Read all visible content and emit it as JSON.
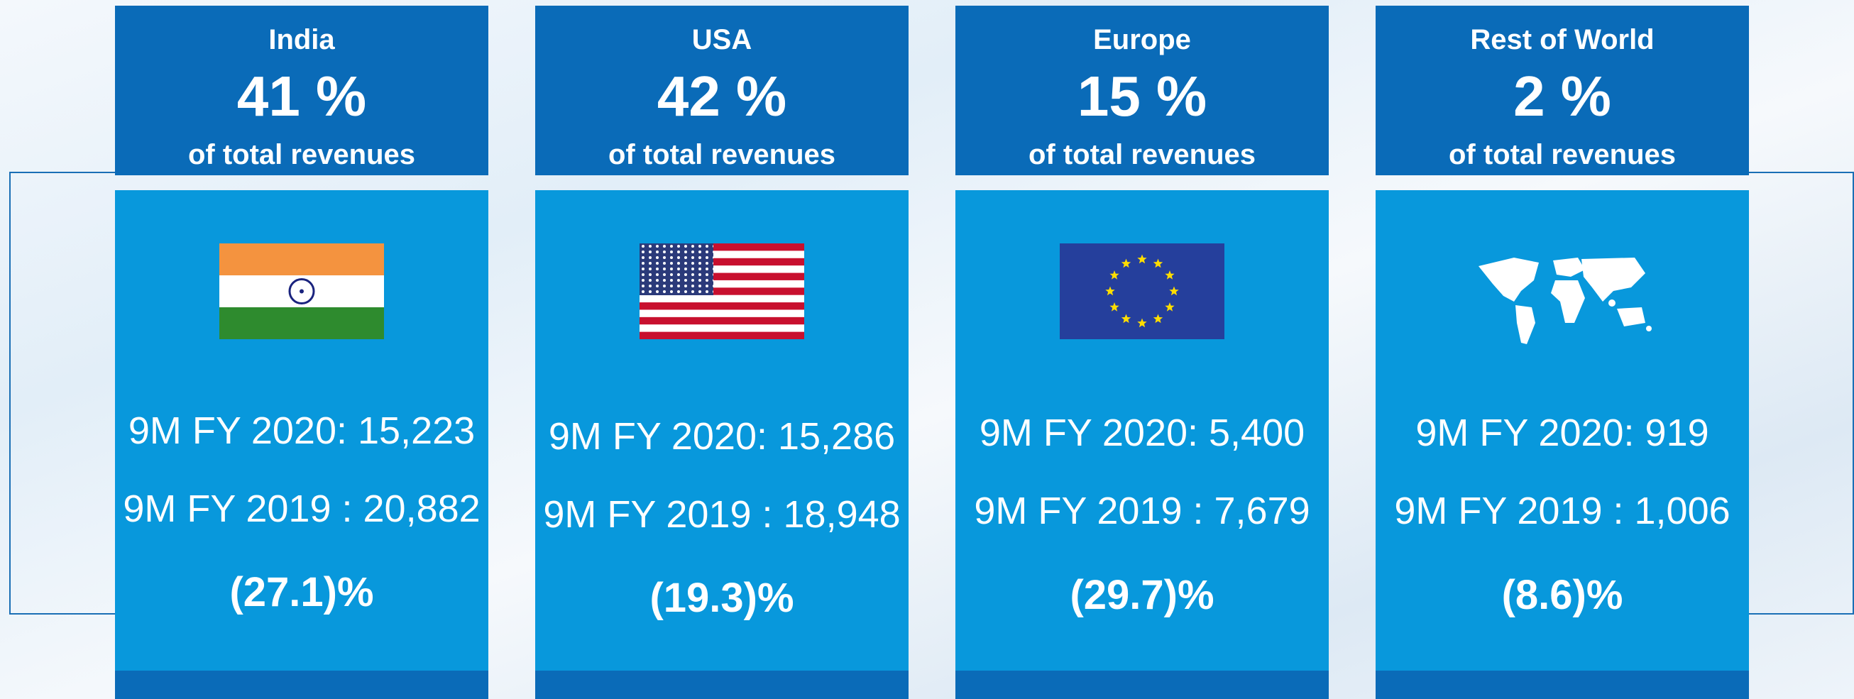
{
  "cards": [
    {
      "region": "India",
      "share": "41 %",
      "share_note": "of total revenues",
      "line_2020": "9M FY 2020: 15,223",
      "line_2019": "9M FY 2019 : 20,882",
      "change": "(27.1)%"
    },
    {
      "region": "USA",
      "share": "42 %",
      "share_note": "of total revenues",
      "line_2020": "9M FY 2020: 15,286",
      "line_2019": "9M FY 2019 : 18,948",
      "change": "(19.3)%"
    },
    {
      "region": "Europe",
      "share": "15 %",
      "share_note": "of total revenues",
      "line_2020": "9M FY 2020: 5,400",
      "line_2019": "9M FY 2019 : 7,679",
      "change": "(29.7)%"
    },
    {
      "region": "Rest of World",
      "share": "2 %",
      "share_note": "of total revenues",
      "line_2020": "9M FY 2020: 919",
      "line_2019": "9M FY 2019 : 1,006",
      "change": "(8.6)%"
    }
  ]
}
